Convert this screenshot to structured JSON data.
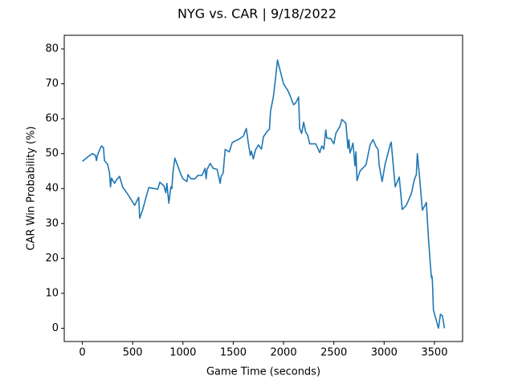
{
  "chart_data": {
    "type": "line",
    "title": "NYG vs. CAR | 9/18/2022",
    "x_label": "Game Time (seconds)",
    "y_label": "CAR Win Probability (%)",
    "xlim": [
      -180,
      3780
    ],
    "ylim": [
      -3.8,
      83.9
    ],
    "xticks": [
      0,
      500,
      1000,
      1500,
      2000,
      2500,
      3000,
      3500
    ],
    "yticks": [
      0,
      10,
      20,
      30,
      40,
      50,
      60,
      70,
      80
    ],
    "grid": false,
    "series": [
      {
        "color": "#1f77b4",
        "x": [
          0,
          60,
          100,
          130,
          140,
          150,
          170,
          190,
          210,
          220,
          250,
          270,
          280,
          290,
          320,
          340,
          370,
          400,
          460,
          520,
          560,
          570,
          600,
          660,
          750,
          770,
          810,
          830,
          840,
          860,
          880,
          890,
          900,
          920,
          980,
          1000,
          1040,
          1050,
          1080,
          1120,
          1150,
          1190,
          1220,
          1230,
          1240,
          1270,
          1300,
          1340,
          1370,
          1380,
          1400,
          1410,
          1420,
          1460,
          1490,
          1560,
          1600,
          1630,
          1650,
          1670,
          1680,
          1700,
          1720,
          1750,
          1780,
          1800,
          1840,
          1860,
          1870,
          1900,
          1920,
          1940,
          1960,
          2000,
          2040,
          2060,
          2100,
          2120,
          2150,
          2160,
          2180,
          2200,
          2220,
          2240,
          2260,
          2320,
          2360,
          2380,
          2400,
          2420,
          2430,
          2470,
          2500,
          2520,
          2560,
          2580,
          2620,
          2640,
          2650,
          2660,
          2670,
          2690,
          2700,
          2710,
          2720,
          2730,
          2760,
          2820,
          2860,
          2890,
          2920,
          2940,
          2950,
          2980,
          3010,
          3060,
          3070,
          3110,
          3150,
          3180,
          3220,
          3270,
          3300,
          3320,
          3330,
          3350,
          3380,
          3420,
          3440,
          3460,
          3470,
          3475,
          3480,
          3490,
          3540,
          3560,
          3580,
          3600
        ],
        "values": [
          47.8,
          49.2,
          50.0,
          49.5,
          48.0,
          49.5,
          51.0,
          52.2,
          51.7,
          48.0,
          47.0,
          44.5,
          40.5,
          43.0,
          41.5,
          42.5,
          43.5,
          40.5,
          38.0,
          35.2,
          37.5,
          31.5,
          34.0,
          40.3,
          39.8,
          41.8,
          40.8,
          38.8,
          41.5,
          35.8,
          40.5,
          40.0,
          44.5,
          48.7,
          44.0,
          42.8,
          42.0,
          44.0,
          42.8,
          42.8,
          43.8,
          43.8,
          45.8,
          42.8,
          45.5,
          47.2,
          45.8,
          45.5,
          41.5,
          43.5,
          44.5,
          48.0,
          51.2,
          50.5,
          53.2,
          54.2,
          55.0,
          57.2,
          53.0,
          49.5,
          50.7,
          48.5,
          51.0,
          52.5,
          51.3,
          54.8,
          56.5,
          57.0,
          62.0,
          66.5,
          71.5,
          76.8,
          74.5,
          70.0,
          68.2,
          67.0,
          64.0,
          64.5,
          66.2,
          57.2,
          55.8,
          59.0,
          56.2,
          55.3,
          52.8,
          52.8,
          50.3,
          52.2,
          51.3,
          56.8,
          54.5,
          54.3,
          52.8,
          55.8,
          57.8,
          59.8,
          58.7,
          51.5,
          54.0,
          50.2,
          51.0,
          53.0,
          50.0,
          46.5,
          50.5,
          42.3,
          45.0,
          46.8,
          52.5,
          54.0,
          52.0,
          51.2,
          46.8,
          42.0,
          47.0,
          52.5,
          53.3,
          40.5,
          43.3,
          34.0,
          35.2,
          38.5,
          42.5,
          44.0,
          50.0,
          44.0,
          33.8,
          36.0,
          26.0,
          18.0,
          14.5,
          15.0,
          13.5,
          5.2,
          0.0,
          4.0,
          3.5,
          0.0
        ]
      }
    ]
  }
}
